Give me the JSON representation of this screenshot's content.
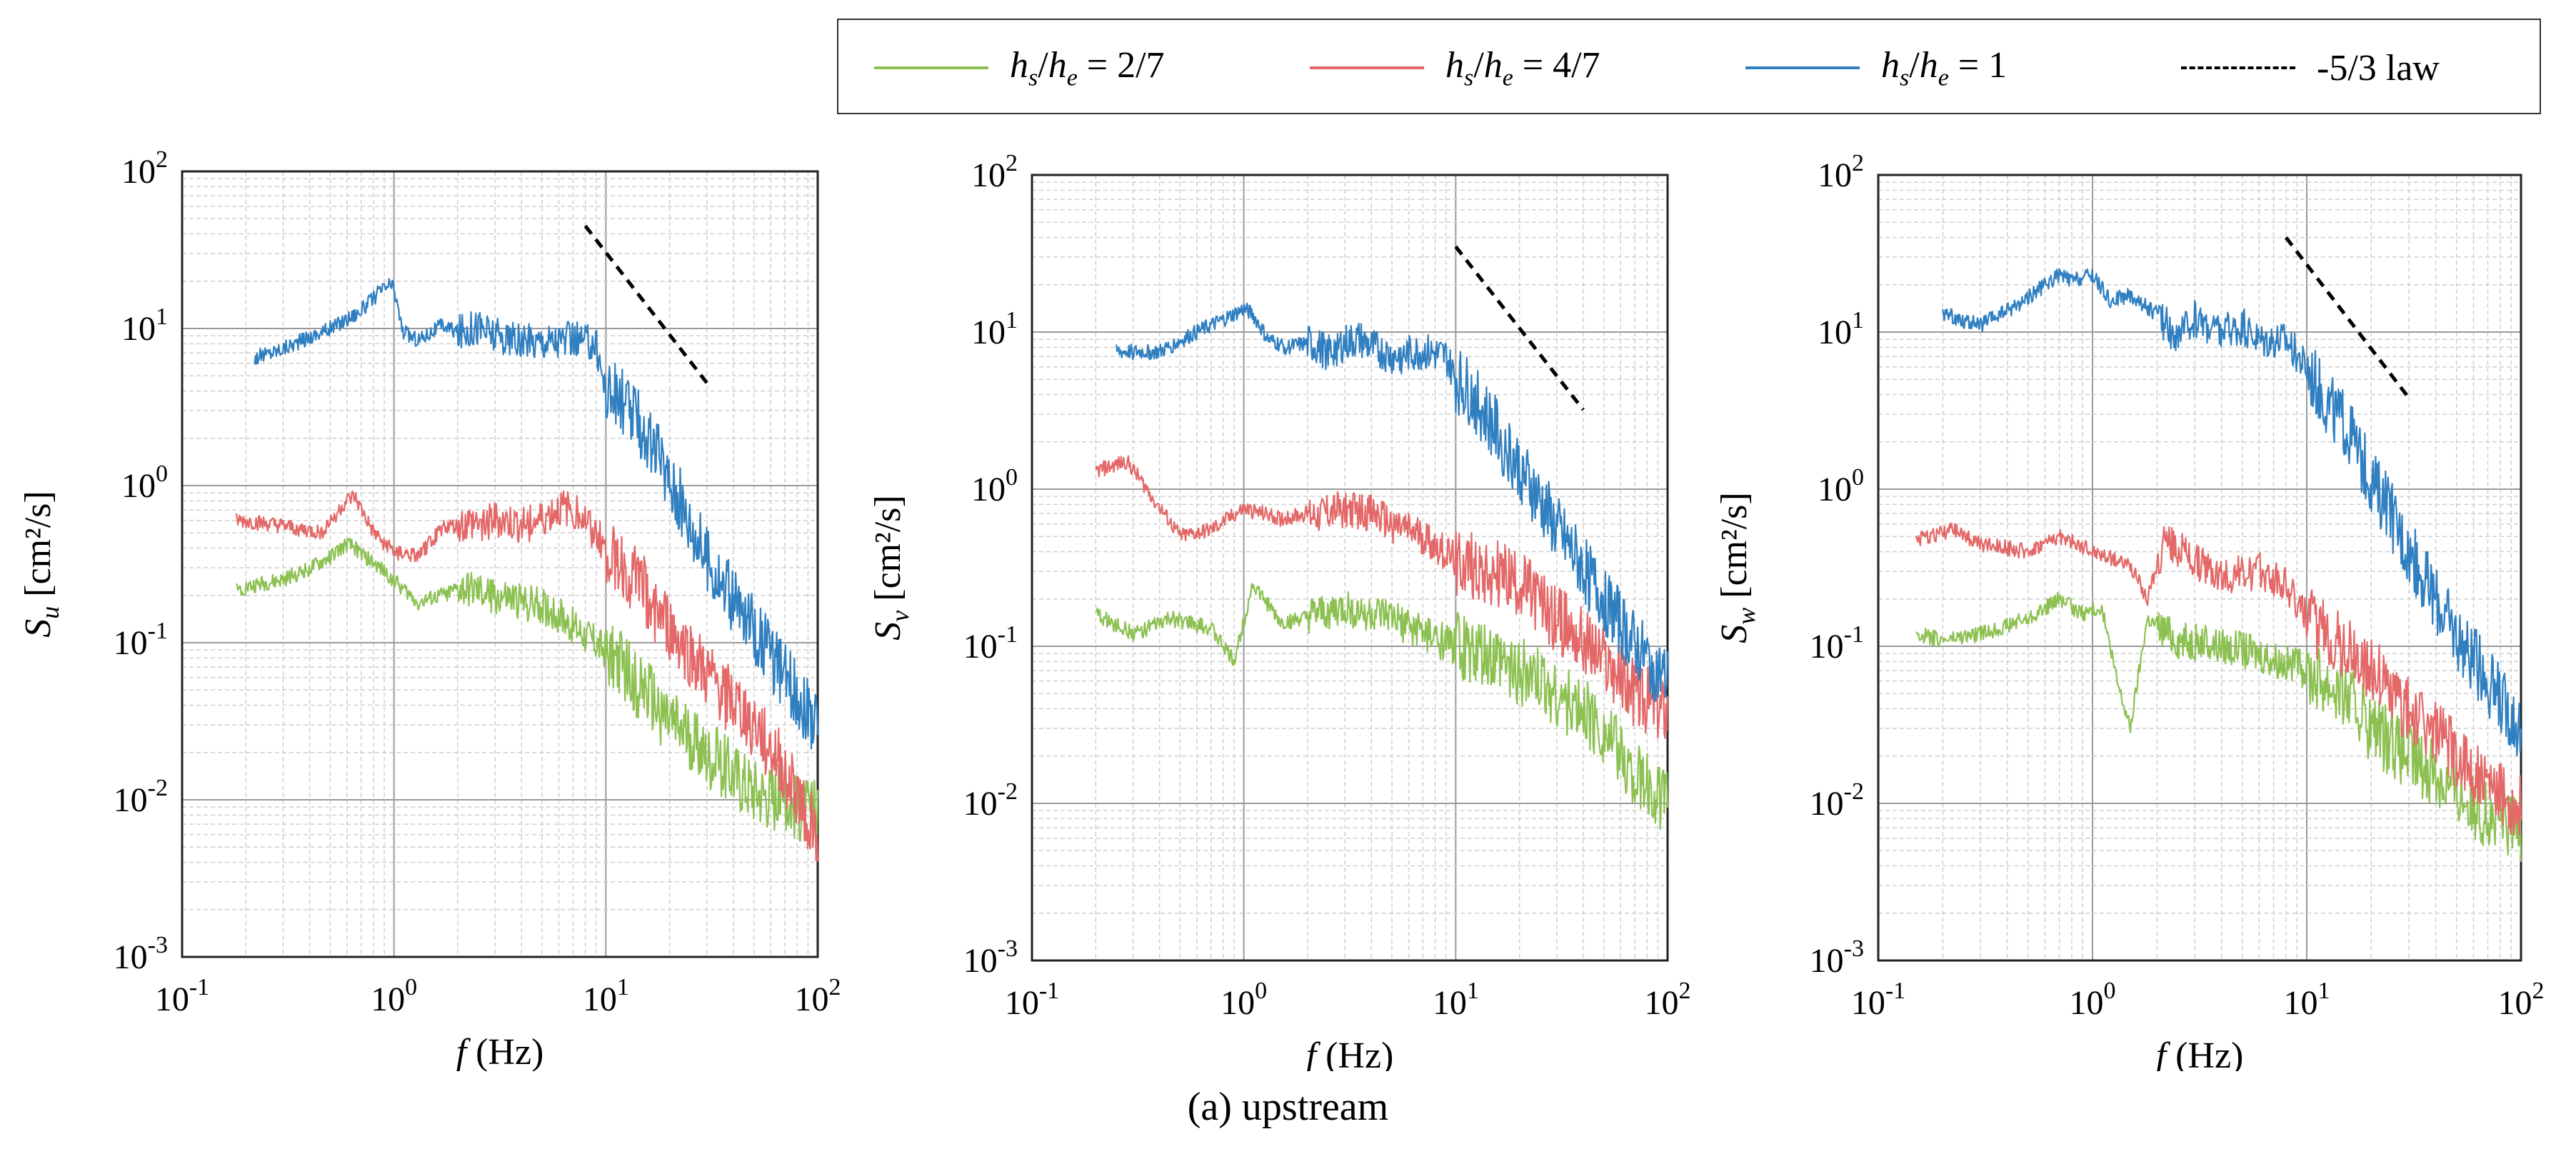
{
  "legend": {
    "items": [
      {
        "key": "green",
        "label_var": "h",
        "label_sub1": "s",
        "label_sep": "/",
        "label_var2": "h",
        "label_sub2": "e",
        "label_rest": " = 2/7",
        "color": "#8cc152",
        "style": "solid"
      },
      {
        "key": "red",
        "label_var": "h",
        "label_sub1": "s",
        "label_sep": "/",
        "label_var2": "h",
        "label_sub2": "e",
        "label_rest": " = 4/7",
        "color": "#e46868",
        "style": "solid"
      },
      {
        "key": "blue",
        "label_var": "h",
        "label_sub1": "s",
        "label_sep": "/",
        "label_var2": "h",
        "label_sub2": "e",
        "label_rest": " = 1",
        "color": "#2f7fc1",
        "style": "solid"
      },
      {
        "key": "law",
        "label_plain": "-5/3 law",
        "color": "#000000",
        "style": "dashed"
      }
    ]
  },
  "caption": "(a) upstream",
  "chart_data": [
    {
      "type": "line",
      "panel": "Su",
      "scale": "log-log",
      "xlabel_var": "f",
      "xlabel_unit": "(Hz)",
      "ylabel_var": "S",
      "ylabel_sub": "u",
      "ylabel_unit": "[cm²/s]",
      "xlim": [
        0.1,
        100
      ],
      "ylim": [
        0.001,
        100
      ],
      "x_ticks": [
        {
          "base": "10",
          "exp": "-1"
        },
        {
          "base": "10",
          "exp": "0"
        },
        {
          "base": "10",
          "exp": "1"
        },
        {
          "base": "10",
          "exp": "2"
        }
      ],
      "y_ticks": [
        {
          "base": "10",
          "exp": "-3"
        },
        {
          "base": "10",
          "exp": "-2"
        },
        {
          "base": "10",
          "exp": "-1"
        },
        {
          "base": "10",
          "exp": "0"
        },
        {
          "base": "10",
          "exp": "1"
        },
        {
          "base": "10",
          "exp": "2"
        }
      ],
      "grid": true,
      "reference_line": {
        "name": "-5/3 law",
        "x": [
          8,
          30
        ],
        "y": [
          45,
          4.5
        ]
      },
      "series": [
        {
          "name": "hs/he = 1",
          "color": "#2f7fc1",
          "x": [
            0.22,
            0.3,
            0.5,
            0.7,
            0.85,
            0.95,
            1.0,
            1.1,
            1.3,
            1.7,
            2.0,
            2.5,
            3.0,
            4.0,
            5.0,
            7.0,
            9.0,
            10,
            12,
            15,
            20,
            30,
            40,
            50,
            70,
            100
          ],
          "y": [
            6.5,
            7.5,
            10,
            13,
            17,
            19,
            18,
            9.5,
            8.5,
            10.5,
            9.5,
            10.5,
            9,
            8,
            8.5,
            8.5,
            8,
            4,
            3.5,
            2.2,
            1.1,
            0.35,
            0.18,
            0.12,
            0.06,
            0.03
          ]
        },
        {
          "name": "hs/he = 4/7",
          "color": "#e46868",
          "x": [
            0.18,
            0.3,
            0.45,
            0.6,
            0.65,
            0.8,
            1.0,
            1.3,
            1.7,
            2.0,
            3.0,
            4.0,
            5.0,
            6.0,
            7.0,
            8.0,
            10,
            15,
            20,
            30,
            50,
            70,
            100
          ],
          "y": [
            0.6,
            0.55,
            0.5,
            0.8,
            0.85,
            0.5,
            0.38,
            0.35,
            0.55,
            0.55,
            0.6,
            0.55,
            0.6,
            0.7,
            0.7,
            0.6,
            0.4,
            0.22,
            0.12,
            0.06,
            0.03,
            0.015,
            0.006
          ]
        },
        {
          "name": "hs/he = 2/7",
          "color": "#8cc152",
          "x": [
            0.18,
            0.3,
            0.45,
            0.6,
            0.65,
            0.8,
            1.0,
            1.3,
            1.7,
            2.0,
            3.0,
            4.0,
            5.0,
            7.0,
            10,
            15,
            20,
            30,
            50,
            70,
            100
          ],
          "y": [
            0.22,
            0.25,
            0.32,
            0.42,
            0.4,
            0.32,
            0.25,
            0.18,
            0.2,
            0.22,
            0.2,
            0.18,
            0.17,
            0.13,
            0.09,
            0.05,
            0.03,
            0.02,
            0.012,
            0.01,
            0.008
          ]
        }
      ]
    },
    {
      "type": "line",
      "panel": "Sv",
      "scale": "log-log",
      "xlabel_var": "f",
      "xlabel_unit": "(Hz)",
      "ylabel_var": "S",
      "ylabel_sub": "v",
      "ylabel_unit": "[cm²/s]",
      "xlim": [
        0.1,
        100
      ],
      "ylim": [
        0.001,
        100
      ],
      "x_ticks": [
        {
          "base": "10",
          "exp": "-1"
        },
        {
          "base": "10",
          "exp": "0"
        },
        {
          "base": "10",
          "exp": "1"
        },
        {
          "base": "10",
          "exp": "2"
        }
      ],
      "y_ticks": [
        {
          "base": "10",
          "exp": "-3"
        },
        {
          "base": "10",
          "exp": "-2"
        },
        {
          "base": "10",
          "exp": "-1"
        },
        {
          "base": "10",
          "exp": "0"
        },
        {
          "base": "10",
          "exp": "1"
        },
        {
          "base": "10",
          "exp": "2"
        }
      ],
      "grid": true,
      "reference_line": {
        "name": "-5/3 law",
        "x": [
          10,
          40
        ],
        "y": [
          35,
          3.2
        ]
      },
      "series": [
        {
          "name": "hs/he = 1",
          "color": "#2f7fc1",
          "x": [
            0.25,
            0.4,
            0.6,
            0.8,
            1.0,
            1.1,
            1.3,
            1.6,
            2.0,
            2.5,
            3.0,
            3.5,
            4.0,
            5.0,
            7.0,
            9.0,
            10,
            12,
            15,
            20,
            30,
            50,
            70,
            100
          ],
          "y": [
            7.5,
            7.5,
            10,
            12,
            14,
            13,
            9,
            8,
            8.5,
            7.5,
            8.5,
            9,
            8,
            7,
            7.5,
            7,
            5,
            4,
            2.5,
            1.4,
            0.55,
            0.2,
            0.1,
            0.06
          ]
        },
        {
          "name": "hs/he = 4/7",
          "color": "#e46868",
          "x": [
            0.2,
            0.28,
            0.35,
            0.5,
            0.7,
            1.0,
            1.5,
            2.0,
            3.0,
            4.0,
            5.0,
            7.0,
            10,
            15,
            20,
            30,
            50,
            70,
            100
          ],
          "y": [
            1.3,
            1.5,
            1.0,
            0.5,
            0.55,
            0.75,
            0.65,
            0.7,
            0.75,
            0.7,
            0.6,
            0.5,
            0.35,
            0.3,
            0.25,
            0.15,
            0.08,
            0.05,
            0.04
          ]
        },
        {
          "name": "hs/he = 2/7",
          "color": "#8cc152",
          "x": [
            0.2,
            0.3,
            0.45,
            0.7,
            0.9,
            1.1,
            1.5,
            2.0,
            3.0,
            5.0,
            7.0,
            10,
            15,
            20,
            30,
            50,
            70,
            100
          ],
          "y": [
            0.16,
            0.12,
            0.15,
            0.13,
            0.08,
            0.25,
            0.14,
            0.15,
            0.17,
            0.15,
            0.12,
            0.1,
            0.08,
            0.07,
            0.05,
            0.03,
            0.015,
            0.01
          ]
        }
      ]
    },
    {
      "type": "line",
      "panel": "Sw",
      "scale": "log-log",
      "xlabel_var": "f",
      "xlabel_unit": "(Hz)",
      "ylabel_var": "S",
      "ylabel_sub": "w",
      "ylabel_unit": "[cm²/s]",
      "xlim": [
        0.1,
        100
      ],
      "ylim": [
        0.001,
        100
      ],
      "x_ticks": [
        {
          "base": "10",
          "exp": "-1"
        },
        {
          "base": "10",
          "exp": "0"
        },
        {
          "base": "10",
          "exp": "1"
        },
        {
          "base": "10",
          "exp": "2"
        }
      ],
      "y_ticks": [
        {
          "base": "10",
          "exp": "-3"
        },
        {
          "base": "10",
          "exp": "-2"
        },
        {
          "base": "10",
          "exp": "-1"
        },
        {
          "base": "10",
          "exp": "0"
        },
        {
          "base": "10",
          "exp": "1"
        },
        {
          "base": "10",
          "exp": "2"
        }
      ],
      "grid": true,
      "reference_line": {
        "name": "-5/3 law",
        "x": [
          8,
          30
        ],
        "y": [
          40,
          3.8
        ]
      },
      "series": [
        {
          "name": "hs/he = 1",
          "color": "#2f7fc1",
          "x": [
            0.2,
            0.3,
            0.45,
            0.7,
            0.8,
            1.0,
            1.2,
            1.5,
            2.0,
            2.5,
            3.0,
            4.0,
            5.0,
            6.0,
            8.0,
            10,
            12,
            15,
            20,
            30,
            50,
            70,
            100
          ],
          "y": [
            13,
            11,
            15,
            23,
            21,
            23,
            16,
            17,
            13,
            9,
            12,
            10,
            11,
            9,
            9,
            6,
            4,
            2.5,
            1.2,
            0.4,
            0.12,
            0.06,
            0.03
          ]
        },
        {
          "name": "hs/he = 4/7",
          "color": "#e46868",
          "x": [
            0.15,
            0.22,
            0.3,
            0.5,
            0.7,
            1.0,
            1.5,
            1.8,
            2.2,
            3.0,
            4.0,
            6.0,
            8.0,
            10,
            15,
            20,
            30,
            50,
            70,
            100
          ],
          "y": [
            0.48,
            0.55,
            0.45,
            0.4,
            0.5,
            0.4,
            0.33,
            0.2,
            0.48,
            0.35,
            0.28,
            0.3,
            0.25,
            0.15,
            0.1,
            0.07,
            0.04,
            0.02,
            0.012,
            0.01
          ]
        },
        {
          "name": "hs/he = 2/7",
          "color": "#8cc152",
          "x": [
            0.15,
            0.2,
            0.3,
            0.5,
            0.7,
            0.9,
            1.1,
            1.3,
            1.5,
            1.8,
            2.5,
            4.0,
            6.0,
            10,
            15,
            20,
            30,
            50,
            70,
            100
          ],
          "y": [
            0.12,
            0.11,
            0.12,
            0.15,
            0.2,
            0.16,
            0.18,
            0.06,
            0.03,
            0.15,
            0.11,
            0.1,
            0.09,
            0.07,
            0.05,
            0.03,
            0.02,
            0.012,
            0.008,
            0.007
          ]
        }
      ]
    }
  ]
}
